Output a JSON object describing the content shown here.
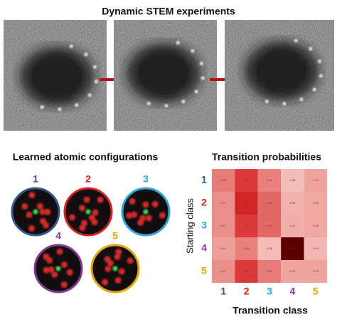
{
  "header": {
    "title": "Dynamic STEM experiments"
  },
  "configurations": {
    "title": "Learned atomic configurations",
    "classes": [
      {
        "label": "1",
        "color": "#34568b"
      },
      {
        "label": "2",
        "color": "#d42222"
      },
      {
        "label": "3",
        "color": "#2fa6d2"
      },
      {
        "label": "4",
        "color": "#7b3a8e"
      },
      {
        "label": "5",
        "color": "#e2a400"
      }
    ]
  },
  "transitions": {
    "title": "Transition probabilities",
    "y_label": "Starting class",
    "x_label": "Transition class",
    "cells": [
      [
        "0.21",
        "0.34",
        "0.20",
        "0.08",
        "0.13"
      ],
      [
        "0.17",
        "0.38",
        "0.25",
        "0.10",
        "0.12"
      ],
      [
        "0.17",
        "0.34",
        "0.25",
        "0.11",
        "0.12"
      ],
      [
        "0.14",
        "0.20",
        "0.08",
        "0.50",
        "0.09"
      ],
      [
        "0.17",
        "0.34",
        "0.21",
        "0.13",
        "0.13"
      ]
    ]
  }
}
